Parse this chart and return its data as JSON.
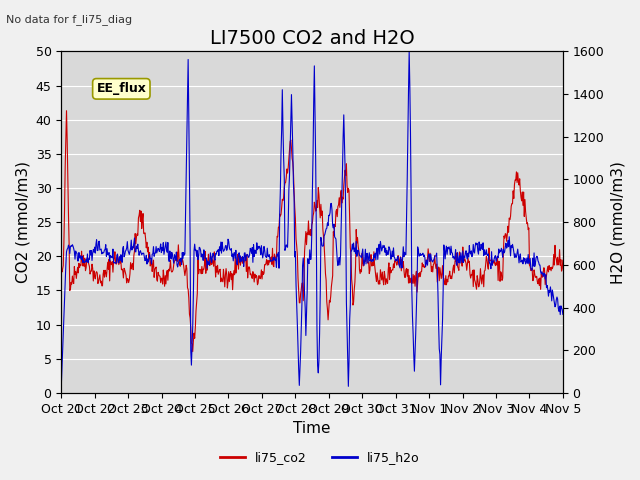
{
  "title": "LI7500 CO2 and H2O",
  "subtitle": "No data for f_li75_diag",
  "xlabel": "Time",
  "ylabel_left": "CO2 (mmol/m3)",
  "ylabel_right": "H2O (mmol/m3)",
  "annotation": "EE_flux",
  "legend_labels": [
    "li75_co2",
    "li75_h2o"
  ],
  "co2_color": "#cc0000",
  "h2o_color": "#0000cc",
  "background_color": "#d9d9d9",
  "ylim_left": [
    0,
    50
  ],
  "ylim_right": [
    0,
    1600
  ],
  "xtick_labels": [
    "Oct 21",
    "Oct 22",
    "Oct 23",
    "Oct 24",
    "Oct 25",
    "Oct 26",
    "Oct 27",
    "Oct 28",
    "Oct 29",
    "Oct 30",
    "Oct 31",
    "Nov 1",
    "Nov 2",
    "Nov 3",
    "Nov 4",
    "Nov 5"
  ],
  "xtick_positions": [
    0,
    1,
    2,
    3,
    4,
    5,
    6,
    7,
    8,
    9,
    10,
    11,
    12,
    13,
    14,
    15
  ],
  "grid_color": "#ffffff",
  "title_fontsize": 14,
  "axis_fontsize": 11,
  "tick_fontsize": 9,
  "yticks_left": [
    0,
    5,
    10,
    15,
    20,
    25,
    30,
    35,
    40,
    45,
    50
  ],
  "yticks_right": [
    0,
    200,
    400,
    600,
    800,
    1000,
    1200,
    1400,
    1600
  ]
}
